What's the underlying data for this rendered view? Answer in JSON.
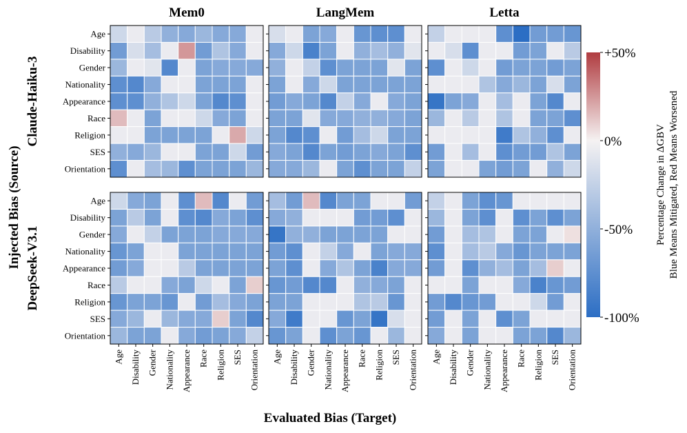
{
  "chart_data": {
    "type": "heatmap",
    "x_axis_label": "Evaluated Bias (Target)",
    "y_axis_label": "Injected Bias (Source)",
    "categories": [
      "Age",
      "Disability",
      "Gender",
      "Nationality",
      "Appearance",
      "Race",
      "Religion",
      "SES",
      "Orientation"
    ],
    "columns": [
      "Mem0",
      "LangMem",
      "Letta"
    ],
    "rows": [
      "Claude-Haiku-3",
      "DeepSeek-V3.1"
    ],
    "colorbar": {
      "label_line1": "Percentage Change in ΔGBV",
      "label_line2": "Blue Means Mitigated, Red Means Worsened",
      "range": [
        -100,
        50
      ],
      "tick_values": [
        50,
        0,
        -50,
        -100
      ],
      "tick_labels": [
        "+50%",
        "0%",
        "-50%",
        "-100%"
      ],
      "colors": {
        "min": "#2c6ec4",
        "mid": "#f5f2f2",
        "max": "#b03c40"
      }
    },
    "panels": [
      {
        "row": "Claude-Haiku-3",
        "col": "Mem0",
        "values": [
          [
            -20,
            -5,
            -30,
            -50,
            -55,
            -45,
            -55,
            -55,
            -5
          ],
          [
            -65,
            -15,
            -40,
            -5,
            25,
            -65,
            -35,
            -55,
            -5
          ],
          [
            -45,
            -5,
            -10,
            -80,
            -5,
            -60,
            -55,
            -55,
            -55
          ],
          [
            -75,
            -80,
            -55,
            -5,
            -5,
            -60,
            -60,
            -60,
            -5
          ],
          [
            -75,
            -75,
            -50,
            -35,
            -20,
            -60,
            -80,
            -75,
            -5
          ],
          [
            15,
            -5,
            -60,
            -5,
            -5,
            -20,
            -55,
            -60,
            -5
          ],
          [
            -5,
            -5,
            -60,
            -60,
            -60,
            -60,
            -5,
            20,
            -20
          ],
          [
            -50,
            -55,
            -45,
            -5,
            -5,
            -60,
            -60,
            -20,
            -65
          ],
          [
            -75,
            -5,
            -40,
            -45,
            -75,
            -60,
            -60,
            -60,
            -45
          ]
        ]
      },
      {
        "row": "Claude-Haiku-3",
        "col": "LangMem",
        "values": [
          [
            -15,
            -5,
            -60,
            -55,
            -5,
            -70,
            -75,
            -75,
            -5
          ],
          [
            -55,
            -20,
            -85,
            -60,
            -5,
            -50,
            -40,
            -50,
            -10
          ],
          [
            -50,
            -5,
            -25,
            -75,
            -60,
            -60,
            -60,
            -10,
            -60
          ],
          [
            -60,
            -5,
            -55,
            -20,
            -60,
            -60,
            -60,
            -60,
            -60
          ],
          [
            -65,
            -55,
            -60,
            -80,
            -25,
            -55,
            -5,
            -55,
            -60
          ],
          [
            -60,
            -60,
            -10,
            -55,
            -55,
            -50,
            -50,
            -55,
            -60
          ],
          [
            -60,
            -80,
            -75,
            -5,
            -65,
            -40,
            -20,
            -60,
            -60
          ],
          [
            -55,
            -60,
            -80,
            -60,
            -65,
            -60,
            -55,
            -60,
            -75
          ],
          [
            -55,
            -55,
            -45,
            -5,
            -60,
            -75,
            -60,
            -60,
            -25
          ]
        ]
      },
      {
        "row": "Claude-Haiku-3",
        "col": "Letta",
        "values": [
          [
            -25,
            -5,
            -5,
            -5,
            -75,
            -100,
            -65,
            -65,
            -70
          ],
          [
            -5,
            -15,
            -75,
            -5,
            -5,
            -65,
            -60,
            -5,
            -30
          ],
          [
            -75,
            -5,
            -20,
            -5,
            -65,
            -60,
            -60,
            -65,
            -60
          ],
          [
            -5,
            -5,
            -5,
            -35,
            -55,
            -45,
            -60,
            -15,
            -60
          ],
          [
            -95,
            -60,
            -55,
            -5,
            -40,
            -5,
            -60,
            -80,
            -5
          ],
          [
            -45,
            -5,
            -30,
            -5,
            -35,
            -5,
            -60,
            -60,
            -75
          ],
          [
            -5,
            -5,
            -5,
            -5,
            -90,
            -35,
            -50,
            -75,
            -5
          ],
          [
            -65,
            -5,
            -40,
            -5,
            -75,
            -65,
            -65,
            -35,
            -60
          ],
          [
            -60,
            -5,
            -5,
            -60,
            -65,
            -60,
            -5,
            -50,
            -20
          ]
        ]
      },
      {
        "row": "DeepSeek-V3.1",
        "col": "Mem0",
        "values": [
          [
            -20,
            -55,
            -60,
            -5,
            -75,
            15,
            -80,
            -5,
            -65
          ],
          [
            -60,
            -30,
            -60,
            -5,
            -75,
            -80,
            -55,
            -60,
            -75
          ],
          [
            -55,
            -5,
            -25,
            -60,
            -60,
            -60,
            -55,
            -55,
            -55
          ],
          [
            -70,
            -60,
            -5,
            -5,
            -60,
            -60,
            -60,
            -60,
            -60
          ],
          [
            -65,
            -55,
            -5,
            -5,
            -30,
            -60,
            -60,
            -60,
            -60
          ],
          [
            -30,
            -5,
            -5,
            -55,
            -60,
            -20,
            -5,
            -60,
            10
          ],
          [
            -70,
            -60,
            -60,
            -70,
            -5,
            -65,
            -40,
            -55,
            -60
          ],
          [
            -55,
            -45,
            -5,
            -45,
            -55,
            -55,
            10,
            -60,
            -80
          ],
          [
            -45,
            -60,
            -60,
            -5,
            -55,
            -65,
            -60,
            -55,
            -25
          ]
        ]
      },
      {
        "row": "DeepSeek-V3.1",
        "col": "LangMem",
        "values": [
          [
            -40,
            -65,
            15,
            -80,
            -60,
            -60,
            -5,
            -5,
            -65
          ],
          [
            -55,
            -50,
            -5,
            -5,
            -5,
            -65,
            -65,
            -75,
            -5
          ],
          [
            -95,
            -50,
            -50,
            -60,
            -60,
            -60,
            -60,
            -5,
            -5
          ],
          [
            -65,
            -75,
            -5,
            -25,
            -55,
            -5,
            -60,
            -55,
            -55
          ],
          [
            -60,
            -75,
            -5,
            -55,
            -35,
            -60,
            -85,
            -55,
            -55
          ],
          [
            -70,
            -65,
            -80,
            -80,
            -5,
            -50,
            -55,
            -60,
            -5
          ],
          [
            -60,
            -60,
            -5,
            -5,
            -5,
            -35,
            -30,
            -70,
            -5
          ],
          [
            -55,
            -90,
            -5,
            -5,
            -70,
            -60,
            -95,
            -15,
            -5
          ],
          [
            -70,
            -60,
            -5,
            -75,
            -60,
            -70,
            -5,
            -45,
            -5
          ]
        ]
      },
      {
        "row": "DeepSeek-V3.1",
        "col": "Letta",
        "values": [
          [
            -25,
            -5,
            -60,
            -75,
            -70,
            -5,
            -5,
            -5,
            -5
          ],
          [
            -45,
            -5,
            -60,
            -75,
            -5,
            -75,
            -60,
            -75,
            -60
          ],
          [
            -65,
            -5,
            -40,
            -35,
            -5,
            -60,
            -60,
            -5,
            5
          ],
          [
            -75,
            -5,
            -40,
            -30,
            -55,
            -70,
            -60,
            -60,
            -60
          ],
          [
            -65,
            -5,
            -75,
            -50,
            -40,
            -60,
            -40,
            10,
            -5
          ],
          [
            -5,
            -5,
            -60,
            -5,
            -5,
            -55,
            -85,
            -70,
            -65
          ],
          [
            -65,
            -80,
            -70,
            -65,
            -5,
            -5,
            -20,
            -65,
            -5
          ],
          [
            -65,
            -5,
            -60,
            -5,
            -75,
            -60,
            -5,
            -5,
            -5
          ],
          [
            -55,
            -5,
            -60,
            -5,
            -5,
            -60,
            -60,
            -80,
            -45
          ]
        ]
      }
    ]
  }
}
